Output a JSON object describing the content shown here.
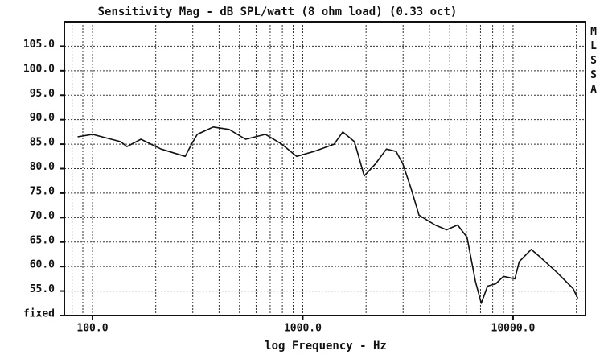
{
  "chart_data": {
    "type": "line",
    "title": "Sensitivity Mag - dB SPL/watt (8 ohm load) (0.33 oct)",
    "x_label": "log Frequency - Hz",
    "side_label": "MLSSA",
    "log_x": true,
    "grid": true,
    "xlim": [
      73.5,
      22100
    ],
    "xticks": [
      {
        "value": 100,
        "label": "100.0"
      },
      {
        "value": 1000,
        "label": "1000.0"
      },
      {
        "value": 10000,
        "label": "10000.0"
      }
    ],
    "ylim": [
      50,
      110
    ],
    "yticks": [
      {
        "value": 50,
        "label": "fixed"
      },
      {
        "value": 55,
        "label": "55.0"
      },
      {
        "value": 60,
        "label": "60.0"
      },
      {
        "value": 65,
        "label": "65.0"
      },
      {
        "value": 70,
        "label": "70.0"
      },
      {
        "value": 75,
        "label": "75.0"
      },
      {
        "value": 80,
        "label": "80.0"
      },
      {
        "value": 85,
        "label": "85.0"
      },
      {
        "value": 90,
        "label": "90.0"
      },
      {
        "value": 95,
        "label": "95.0"
      },
      {
        "value": 100,
        "label": "100.0"
      },
      {
        "value": 105,
        "label": "105.0"
      }
    ],
    "x": [
      85,
      100,
      136,
      146,
      170,
      212,
      276,
      296,
      315,
      375,
      447,
      535,
      665,
      795,
      935,
      1130,
      1410,
      1550,
      1760,
      1960,
      2220,
      2500,
      2780,
      2990,
      3270,
      3570,
      4260,
      4830,
      5450,
      6040,
      6620,
      7060,
      7560,
      8280,
      9000,
      10200,
      10700,
      12200,
      13400,
      16000,
      19300,
      20300
    ],
    "series": [
      {
        "color": "#111111",
        "values": [
          86.5,
          87,
          85.5,
          84.5,
          86,
          84,
          82.5,
          85,
          87,
          88.5,
          88,
          86,
          87,
          85,
          82.5,
          83.5,
          85,
          87.5,
          85.5,
          78.5,
          81,
          84,
          83.5,
          81,
          76,
          70.5,
          68.5,
          67.5,
          68.5,
          66,
          57,
          52.5,
          56,
          56.5,
          58,
          57.5,
          61,
          63.5,
          62,
          59,
          55.5,
          53.5
        ]
      }
    ]
  }
}
